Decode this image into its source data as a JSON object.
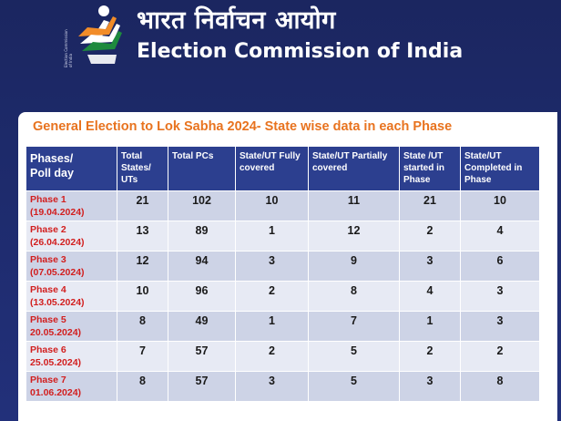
{
  "header": {
    "title_hindi": "भारत निर्वाचन आयोग",
    "title_english": "Election Commission of India",
    "logo_caption": "Election Commission of India",
    "colors": {
      "saffron": "#f28c28",
      "green": "#1e8a3e",
      "navy": "#1b2660"
    }
  },
  "card": {
    "title": "General Election to Lok Sabha 2024- State wise data in each Phase"
  },
  "table": {
    "headers": [
      {
        "line1": "Phases/",
        "line2": "Poll day"
      },
      {
        "text": "Total States/ UTs"
      },
      {
        "text": "Total PCs"
      },
      {
        "text": "State/UT Fully covered"
      },
      {
        "text": "State/UT Partially covered"
      },
      {
        "text": "State /UT started in Phase"
      },
      {
        "text": "State/UT Completed in Phase"
      }
    ],
    "rows": [
      {
        "phase": "Phase 1",
        "date": "(19.04.2024)",
        "values": [
          "21",
          "102",
          "10",
          "11",
          "21",
          "10"
        ]
      },
      {
        "phase": "Phase 2",
        "date": "(26.04.2024)",
        "values": [
          "13",
          "89",
          "1",
          "12",
          "2",
          "4"
        ]
      },
      {
        "phase": "Phase 3",
        "date": "(07.05.2024)",
        "values": [
          "12",
          "94",
          "3",
          "9",
          "3",
          "6"
        ]
      },
      {
        "phase": "Phase 4",
        "date": "(13.05.2024)",
        "values": [
          "10",
          "96",
          "2",
          "8",
          "4",
          "3"
        ]
      },
      {
        "phase": "Phase 5",
        "date": "20.05.2024)",
        "values": [
          "8",
          "49",
          "1",
          "7",
          "1",
          "3"
        ]
      },
      {
        "phase": "Phase 6",
        "date": "25.05.2024)",
        "values": [
          "7",
          "57",
          "2",
          "5",
          "2",
          "2"
        ]
      },
      {
        "phase": "Phase 7",
        "date": "01.06.2024)",
        "values": [
          "8",
          "57",
          "3",
          "5",
          "3",
          "8"
        ]
      }
    ],
    "colors": {
      "header_bg": "#2c3f8f",
      "row_dark": "#cdd3e6",
      "row_light": "#e7eaf4",
      "phase_text": "#d21e1e",
      "title_text": "#e8731f"
    }
  }
}
